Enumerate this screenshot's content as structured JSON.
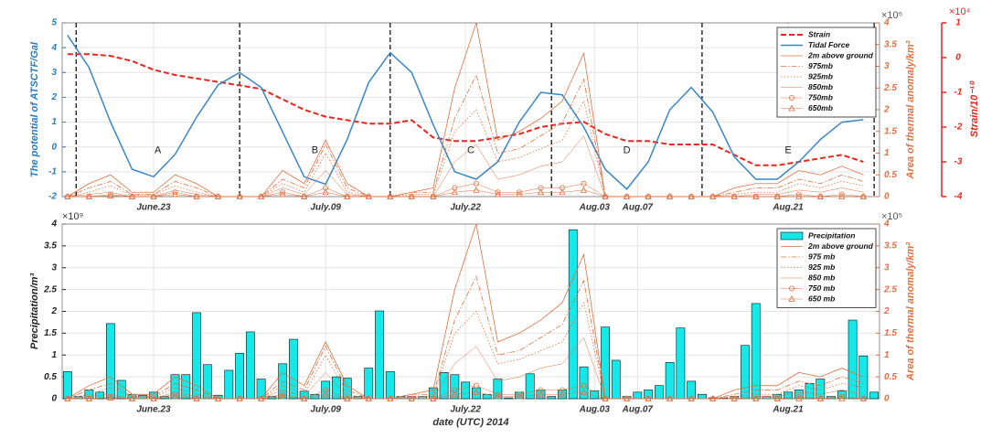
{
  "chart_data": [
    {
      "type": "line",
      "y_label": "The potential of ATSCTF/Gal",
      "y2_label": "Area of thermal anomaly/km²",
      "y3_label": "Strain/10⁻¹⁰",
      "y2_exponent": "×10⁵",
      "y3_exponent": "×10⁴",
      "xlim": [
        165.5,
        241.5
      ],
      "xticks": [
        {
          "value": 174,
          "label": "June.23"
        },
        {
          "value": 190,
          "label": "July.09"
        },
        {
          "value": 203,
          "label": "July.22"
        },
        {
          "value": 215,
          "label": "Aug.03"
        },
        {
          "value": 219,
          "label": "Aug.07"
        },
        {
          "value": 233,
          "label": "Aug.21"
        }
      ],
      "ylim": [
        -2,
        5
      ],
      "yticks": [
        -2,
        -1,
        0,
        1,
        2,
        3,
        4,
        5
      ],
      "y2lim": [
        0,
        4
      ],
      "y2ticks": [
        0,
        0.5,
        1,
        1.5,
        2,
        2.5,
        3,
        3.5,
        4
      ],
      "y3lim": [
        -4,
        1
      ],
      "y3ticks": [
        -4,
        -3,
        -2,
        -1,
        0,
        1
      ],
      "grid": true,
      "legend": "upper right",
      "vlines": [
        166.8,
        182,
        196,
        211,
        225,
        241
      ],
      "annotations": [
        "A",
        "B",
        "C",
        "D",
        "E"
      ],
      "x": [
        166,
        168,
        170,
        172,
        174,
        176,
        178,
        180,
        182,
        184,
        186,
        188,
        190,
        192,
        194,
        196,
        198,
        200,
        202,
        204,
        206,
        208,
        210,
        212,
        214,
        216,
        218,
        220,
        222,
        224,
        226,
        228,
        230,
        232,
        234,
        236,
        238,
        240
      ],
      "series": [
        {
          "name": "Strain",
          "color": "#e8261e",
          "linestyle": "dashed",
          "axis": "y3",
          "width": 2,
          "values": [
            0.1,
            0.1,
            0.05,
            -0.1,
            -0.35,
            -0.5,
            -0.6,
            -0.7,
            -0.8,
            -0.9,
            -1.2,
            -1.5,
            -1.7,
            -1.8,
            -1.9,
            -1.9,
            -1.8,
            -2.3,
            -2.4,
            -2.4,
            -2.3,
            -2.2,
            -2.0,
            -1.9,
            -1.85,
            -2.2,
            -2.4,
            -2.4,
            -2.5,
            -2.5,
            -2.5,
            -2.8,
            -3.1,
            -3.1,
            -3.0,
            -2.9,
            -2.8,
            -3.0
          ]
        },
        {
          "name": "Tidal Force",
          "color": "#3a86c8",
          "linestyle": "solid",
          "axis": "y",
          "width": 1.5,
          "values": [
            4.5,
            3.2,
            1.0,
            -0.9,
            -1.2,
            -0.3,
            1.2,
            2.5,
            3.0,
            2.4,
            0.6,
            -1.2,
            -1.5,
            0.3,
            2.6,
            3.8,
            3.0,
            0.9,
            -1.0,
            -1.3,
            -0.6,
            1.0,
            2.2,
            2.1,
            0.8,
            -0.9,
            -1.7,
            -0.6,
            1.5,
            2.4,
            1.4,
            -0.4,
            -1.3,
            -1.3,
            -0.6,
            0.3,
            1.0,
            1.1
          ]
        },
        {
          "name": "2m above ground",
          "color": "#e07040",
          "linestyle": "solid",
          "axis": "y2",
          "width": 0.8,
          "values": [
            0,
            0.3,
            0.5,
            0.1,
            0.1,
            0.5,
            0.3,
            0,
            0,
            0,
            0.6,
            0.3,
            1.3,
            0.3,
            0,
            0,
            0.1,
            0.2,
            2.5,
            4.0,
            1.3,
            1.5,
            1.8,
            2.2,
            3.3,
            0,
            0,
            0,
            0,
            0,
            0,
            0.2,
            0.3,
            0.3,
            0.6,
            0.5,
            0.7,
            0.5
          ]
        },
        {
          "name": "975mb",
          "color": "#e07040",
          "linestyle": "dashdot",
          "axis": "y2",
          "width": 0.8,
          "values": [
            0,
            0.2,
            0.35,
            0.05,
            0.05,
            0.35,
            0.2,
            0,
            0,
            0,
            0.4,
            0.2,
            1.2,
            0.2,
            0,
            0,
            0.1,
            0.1,
            1.8,
            2.8,
            1.0,
            1.1,
            1.4,
            1.7,
            2.7,
            0,
            0,
            0,
            0,
            0,
            0,
            0.1,
            0.2,
            0.2,
            0.4,
            0.3,
            0.5,
            0.35
          ]
        },
        {
          "name": "925mb",
          "color": "#e07040",
          "linestyle": "dotted",
          "axis": "y2",
          "width": 0.8,
          "values": [
            0,
            0.1,
            0.25,
            0.03,
            0.03,
            0.25,
            0.1,
            0,
            0,
            0,
            0.3,
            0.1,
            1.0,
            0.1,
            0,
            0,
            0.05,
            0.05,
            1.5,
            2.0,
            0.8,
            0.9,
            1.1,
            1.3,
            2.2,
            0,
            0,
            0,
            0,
            0,
            0,
            0.05,
            0.1,
            0.1,
            0.3,
            0.2,
            0.35,
            0.25
          ]
        },
        {
          "name": "850mb",
          "color": "#e07040",
          "linestyle": "solid",
          "axis": "y2",
          "width": 0.5,
          "values": [
            0,
            0.05,
            0.1,
            0,
            0,
            0.15,
            0.05,
            0,
            0,
            0,
            0.2,
            0.05,
            0.6,
            0.05,
            0,
            0,
            0,
            0,
            0.8,
            1.2,
            0.4,
            0.5,
            0.7,
            0.8,
            1.4,
            0,
            0,
            0,
            0,
            0,
            0,
            0,
            0.05,
            0.05,
            0.15,
            0.1,
            0.2,
            0.1
          ]
        },
        {
          "name": "750mb",
          "color": "#e07040",
          "linestyle": "solid",
          "axis": "y2",
          "width": 0.5,
          "marker": "o",
          "values": [
            0,
            0,
            0.05,
            0,
            0,
            0.1,
            0,
            0,
            0,
            0,
            0.1,
            0,
            0.2,
            0,
            0,
            0,
            0,
            0,
            0.2,
            0.3,
            0.1,
            0.1,
            0.2,
            0.2,
            0.3,
            0,
            0,
            0,
            0,
            0,
            0,
            0,
            0,
            0,
            0.05,
            0,
            0.05,
            0
          ]
        },
        {
          "name": "650mb",
          "color": "#e07040",
          "linestyle": "solid",
          "axis": "y2",
          "width": 0.5,
          "marker": "^",
          "values": [
            0,
            0,
            0.02,
            0,
            0,
            0.05,
            0,
            0,
            0,
            0,
            0.05,
            0,
            0.1,
            0,
            0,
            0,
            0,
            0,
            0.1,
            0.15,
            0.05,
            0.05,
            0.1,
            0.1,
            0.15,
            0,
            0,
            0,
            0,
            0,
            0,
            0,
            0,
            0,
            0,
            0,
            0,
            0
          ]
        }
      ]
    },
    {
      "type": "bar",
      "y_label": "Precipitation/m³",
      "y2_label": "Area of thermal anomaly/km²",
      "x_label": "date (UTC) 2014",
      "y_exponent": "×10⁹",
      "y2_exponent": "×10⁵",
      "xlim": [
        165.5,
        241.5
      ],
      "xticks": [
        {
          "value": 174,
          "label": "June.23"
        },
        {
          "value": 190,
          "label": "July.09"
        },
        {
          "value": 203,
          "label": "July.22"
        },
        {
          "value": 215,
          "label": "Aug.03"
        },
        {
          "value": 219,
          "label": "Aug.07"
        },
        {
          "value": 233,
          "label": "Aug.21"
        }
      ],
      "ylim": [
        0,
        4
      ],
      "yticks": [
        0,
        0.5,
        1,
        1.5,
        2,
        2.5,
        3,
        3.5,
        4
      ],
      "y2lim": [
        0,
        4
      ],
      "y2ticks": [
        0,
        0.5,
        1,
        1.5,
        2,
        2.5,
        3,
        3.5,
        4
      ],
      "grid": true,
      "legend": "upper right",
      "x": [
        166,
        168,
        170,
        172,
        174,
        176,
        178,
        180,
        182,
        184,
        186,
        188,
        190,
        192,
        194,
        196,
        198,
        200,
        202,
        204,
        206,
        208,
        210,
        212,
        214,
        216,
        218,
        220,
        222,
        224,
        226,
        228,
        230,
        232,
        234,
        236,
        238,
        240
      ],
      "series": [
        {
          "name": "Precipitation",
          "color": "#14e8e8",
          "type": "bar",
          "axis": "y",
          "x": [
            166,
            167,
            168,
            169,
            170,
            171,
            172,
            173,
            174,
            175,
            176,
            177,
            178,
            179,
            180,
            181,
            182,
            183,
            184,
            185,
            186,
            187,
            188,
            189,
            190,
            191,
            192,
            193,
            194,
            195,
            196,
            197,
            198,
            199,
            200,
            201,
            202,
            203,
            204,
            205,
            206,
            207,
            208,
            209,
            210,
            211,
            212,
            213,
            214,
            215,
            216,
            217,
            218,
            219,
            220,
            221,
            222,
            223,
            224,
            225,
            226,
            227,
            228,
            229,
            230,
            231,
            232,
            233,
            234,
            235,
            236,
            237,
            238,
            239,
            240,
            241
          ],
          "values": [
            0.62,
            0.05,
            0.2,
            0.15,
            1.72,
            0.42,
            0.1,
            0.08,
            0.15,
            0.05,
            0.55,
            0.55,
            1.97,
            0.78,
            0.08,
            0.65,
            1.04,
            1.53,
            0.45,
            0.05,
            0.8,
            1.36,
            0.17,
            0.1,
            0.4,
            0.5,
            0.47,
            0.05,
            0.7,
            2.01,
            0.62,
            0.05,
            0.05,
            0.05,
            0.25,
            0.6,
            0.55,
            0.38,
            0.25,
            0.1,
            0.45,
            0.02,
            0.15,
            0.57,
            0.2,
            0.05,
            0.2,
            3.87,
            0.73,
            0.18,
            1.64,
            0.88,
            0.05,
            0.15,
            0.2,
            0.3,
            0.83,
            1.62,
            0.4,
            0.1,
            0.02,
            0.02,
            0.05,
            1.22,
            2.18,
            0.05,
            0.1,
            0.15,
            0.2,
            0.35,
            0.45,
            0.05,
            0.18,
            1.8,
            0.98,
            0.15
          ]
        },
        {
          "name": "2m above ground",
          "color": "#e07040",
          "linestyle": "solid",
          "axis": "y2",
          "width": 0.8,
          "values": [
            0,
            0.3,
            0.5,
            0.1,
            0.1,
            0.5,
            0.3,
            0,
            0,
            0,
            0.6,
            0.3,
            1.3,
            0.3,
            0,
            0,
            0.1,
            0.2,
            2.5,
            4.0,
            1.3,
            1.5,
            1.8,
            2.2,
            3.3,
            0,
            0,
            0,
            0,
            0,
            0,
            0.2,
            0.3,
            0.3,
            0.6,
            0.5,
            0.7,
            0.5
          ]
        },
        {
          "name": "975 mb",
          "color": "#e07040",
          "linestyle": "dashdot",
          "axis": "y2",
          "width": 0.8,
          "values": [
            0,
            0.2,
            0.35,
            0.05,
            0.05,
            0.35,
            0.2,
            0,
            0,
            0,
            0.4,
            0.2,
            1.2,
            0.2,
            0,
            0,
            0.1,
            0.1,
            1.8,
            2.8,
            1.0,
            1.1,
            1.4,
            1.7,
            2.7,
            0,
            0,
            0,
            0,
            0,
            0,
            0.1,
            0.2,
            0.2,
            0.4,
            0.3,
            0.5,
            0.35
          ]
        },
        {
          "name": "925 mb",
          "color": "#e07040",
          "linestyle": "dotted",
          "axis": "y2",
          "width": 0.8,
          "values": [
            0,
            0.1,
            0.25,
            0.03,
            0.03,
            0.25,
            0.1,
            0,
            0,
            0,
            0.3,
            0.1,
            1.0,
            0.1,
            0,
            0,
            0.05,
            0.05,
            1.5,
            2.0,
            0.8,
            0.9,
            1.1,
            1.3,
            2.2,
            0,
            0,
            0,
            0,
            0,
            0,
            0.05,
            0.1,
            0.1,
            0.3,
            0.2,
            0.35,
            0.25
          ]
        },
        {
          "name": "850 mb",
          "color": "#e07040",
          "linestyle": "solid",
          "axis": "y2",
          "width": 0.5,
          "values": [
            0,
            0.05,
            0.1,
            0,
            0,
            0.15,
            0.05,
            0,
            0,
            0,
            0.2,
            0.05,
            0.6,
            0.05,
            0,
            0,
            0,
            0,
            0.8,
            1.2,
            0.4,
            0.5,
            0.7,
            0.8,
            1.4,
            0,
            0,
            0,
            0,
            0,
            0,
            0,
            0.05,
            0.05,
            0.15,
            0.1,
            0.2,
            0.1
          ]
        },
        {
          "name": "750 mb",
          "color": "#e07040",
          "linestyle": "solid",
          "axis": "y2",
          "width": 0.5,
          "marker": "o",
          "values": [
            0,
            0,
            0.05,
            0,
            0,
            0.1,
            0,
            0,
            0,
            0,
            0.1,
            0,
            0.2,
            0,
            0,
            0,
            0,
            0,
            0.2,
            0.3,
            0.1,
            0.1,
            0.2,
            0.2,
            0.3,
            0,
            0,
            0,
            0,
            0,
            0,
            0,
            0,
            0,
            0.05,
            0,
            0.05,
            0
          ]
        },
        {
          "name": "650 mb",
          "color": "#e07040",
          "linestyle": "solid",
          "axis": "y2",
          "width": 0.5,
          "marker": "^",
          "values": [
            0,
            0,
            0.02,
            0,
            0,
            0.05,
            0,
            0,
            0,
            0,
            0.05,
            0,
            0.1,
            0,
            0,
            0,
            0,
            0,
            0.1,
            0.15,
            0.05,
            0.05,
            0.1,
            0.1,
            0.15,
            0,
            0,
            0,
            0,
            0,
            0,
            0,
            0,
            0,
            0,
            0,
            0,
            0
          ]
        }
      ]
    }
  ]
}
